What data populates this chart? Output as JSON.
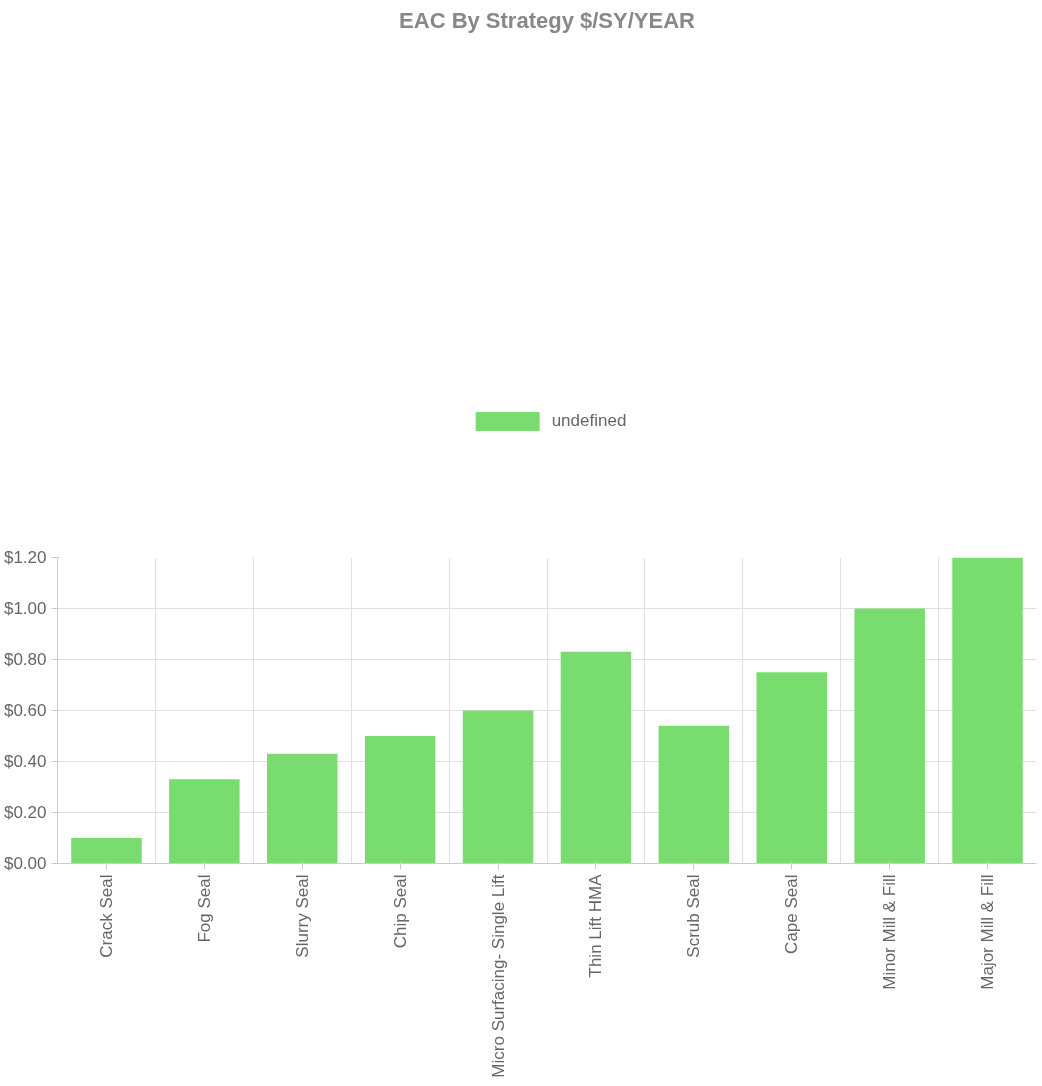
{
  "chart_data": {
    "type": "bar",
    "title": "EAC By Strategy $/SY/YEAR",
    "categories": [
      "Crack Seal",
      "Fog Seal",
      "Slurry Seal",
      "Chip Seal",
      "Micro Surfacing- Single Lift",
      "Thin Lift HMA",
      "Scrub Seal",
      "Cape Seal",
      "Minor Mill & Fill",
      "Major Mill & Fill"
    ],
    "series": [
      {
        "name": "undefined",
        "color": "#78dd6e",
        "values": [
          0.1,
          0.33,
          0.43,
          0.5,
          0.6,
          0.83,
          0.54,
          0.75,
          1.0,
          1.2
        ]
      }
    ],
    "ylim": [
      0,
      1.2
    ],
    "yticks": [
      {
        "value": 0,
        "label": "$0.00"
      },
      {
        "value": 0.2,
        "label": "$0.20"
      },
      {
        "value": 0.4,
        "label": "$0.40"
      },
      {
        "value": 0.6,
        "label": "$0.60"
      },
      {
        "value": 0.8,
        "label": "$0.80"
      },
      {
        "value": 1.0,
        "label": "$1.00"
      },
      {
        "value": 1.2,
        "label": "$1.20"
      }
    ],
    "grid": true,
    "legend": "top"
  }
}
